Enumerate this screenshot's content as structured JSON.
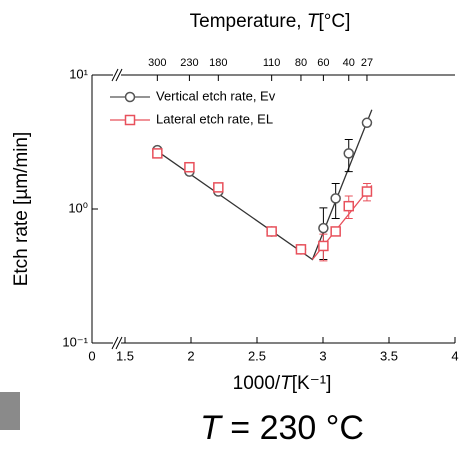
{
  "chart_data": {
    "type": "scatter",
    "title": [
      "Temperature, ",
      "T",
      "[°C]"
    ],
    "xlabel": [
      "1000/",
      "T",
      "[K⁻¹]"
    ],
    "ylabel": "Etch rate [µm/min]",
    "xlim": [
      1.5,
      4.0
    ],
    "xticks": [
      0,
      1.5,
      2.0,
      2.5,
      3.0,
      3.5,
      4.0
    ],
    "x_break": true,
    "ylim": [
      0.1,
      10
    ],
    "log_y": true,
    "yticks": [
      {
        "value": 10,
        "label": "10¹"
      },
      {
        "value": 1,
        "label": "10⁰"
      },
      {
        "value": 0.1,
        "label": "10⁻¹"
      }
    ],
    "top_xticks": [
      {
        "value": 1.745,
        "label": "300"
      },
      {
        "value": 1.988,
        "label": "230"
      },
      {
        "value": 2.207,
        "label": "180"
      },
      {
        "value": 2.611,
        "label": "110"
      },
      {
        "value": 2.833,
        "label": "80"
      },
      {
        "value": 3.003,
        "label": "60"
      },
      {
        "value": 3.195,
        "label": "40"
      },
      {
        "value": 3.333,
        "label": "27"
      }
    ],
    "legend": "upper left",
    "series": [
      {
        "name": "Vertical etch rate, Ev",
        "color": "#555555",
        "marker": "circle",
        "x": [
          1.745,
          1.988,
          2.207,
          2.611,
          2.833,
          3.003,
          3.096,
          3.195,
          3.333
        ],
        "values": [
          2.75,
          1.9,
          1.35,
          0.68,
          0.5,
          0.72,
          1.2,
          2.6,
          4.4
        ],
        "errors": [
          null,
          null,
          null,
          null,
          null,
          0.3,
          0.35,
          0.7,
          null
        ]
      },
      {
        "name": "Lateral etch rate, EL",
        "color": "#e8505b",
        "marker": "square",
        "x": [
          1.745,
          1.988,
          2.207,
          2.611,
          2.833,
          3.003,
          3.096,
          3.195,
          3.333
        ],
        "values": [
          2.6,
          2.05,
          1.45,
          0.68,
          0.5,
          0.53,
          0.68,
          1.05,
          1.35
        ],
        "errors": [
          null,
          null,
          null,
          null,
          null,
          0.12,
          null,
          0.2,
          0.2
        ]
      }
    ],
    "fit_lines": [
      {
        "color": "#333333",
        "x": [
          1.745,
          2.92,
          3.37
        ],
        "values": [
          2.7,
          0.42,
          5.5
        ]
      },
      {
        "color": "#e8505b",
        "x": [
          2.92,
          3.37
        ],
        "values": [
          0.42,
          1.5
        ]
      }
    ],
    "annotation": [
      "T",
      "= 230 °C"
    ]
  }
}
